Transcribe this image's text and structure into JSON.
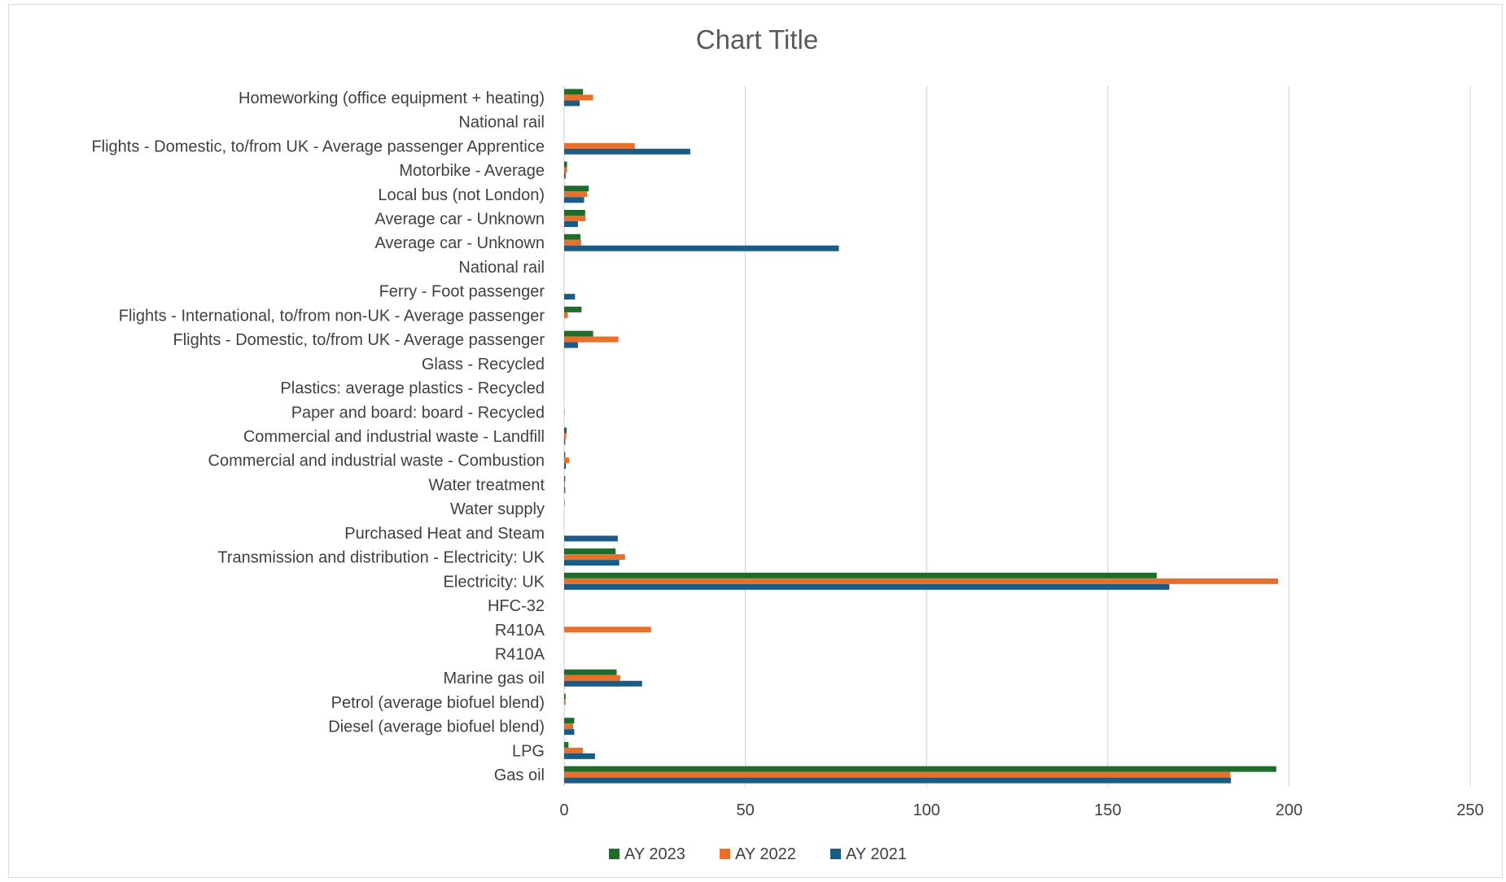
{
  "chart_data": {
    "type": "bar",
    "orientation": "horizontal",
    "title": "Chart Title",
    "xlabel": "",
    "ylabel": "",
    "xlim": [
      0,
      250
    ],
    "xticks": [
      0,
      50,
      100,
      150,
      200,
      250
    ],
    "grid": true,
    "legend_position": "bottom",
    "categories": [
      "Homeworking (office equipment + heating)",
      "National rail",
      "Flights - Domestic, to/from UK - Average passenger Apprentice",
      "Motorbike - Average",
      "Local bus (not London)",
      "Average car - Unknown",
      "Average car - Unknown",
      "National rail",
      "Ferry - Foot passenger",
      "Flights - International, to/from non-UK - Average passenger",
      "Flights - Domestic, to/from UK - Average passenger",
      "Glass - Recycled",
      "Plastics: average plastics - Recycled",
      "Paper and board: board - Recycled",
      "Commercial and industrial waste - Landfill",
      "Commercial and industrial waste - Combustion",
      "Water treatment",
      "Water supply",
      "Purchased Heat and Steam ",
      "Transmission and distribution - Electricity: UK",
      "Electricity: UK",
      "HFC-32",
      "R410A",
      "R410A",
      "Marine gas oil",
      "Petrol (average biofuel blend)",
      "Diesel (average biofuel blend)",
      "LPG",
      "Gas oil"
    ],
    "series": [
      {
        "name": "AY 2023",
        "color": "#1e6b2a",
        "values": [
          5.2,
          0,
          0,
          0.8,
          6.8,
          5.8,
          4.5,
          0,
          0,
          4.8,
          8.0,
          0,
          0,
          0,
          0.7,
          0.3,
          0.3,
          0.1,
          0,
          14.2,
          163.5,
          0,
          0,
          0,
          14.5,
          0.4,
          2.8,
          1.2,
          196.5
        ]
      },
      {
        "name": "AY 2022",
        "color": "#e8702a",
        "values": [
          8.0,
          0,
          19.5,
          0.8,
          6.3,
          5.9,
          4.7,
          0,
          0,
          1.0,
          15.0,
          0,
          0,
          0.1,
          0.6,
          1.4,
          0.2,
          0,
          0,
          16.8,
          197.0,
          0,
          24.0,
          0,
          15.5,
          0.4,
          2.5,
          5.2,
          183.8
        ]
      },
      {
        "name": "AY 2021",
        "color": "#1a5c85",
        "values": [
          4.3,
          0,
          34.8,
          0.4,
          5.5,
          3.8,
          75.8,
          0,
          3.0,
          0,
          3.8,
          0,
          0,
          0,
          0.3,
          0.5,
          0.3,
          0,
          14.8,
          15.2,
          167.0,
          0,
          0,
          0,
          21.5,
          0,
          2.8,
          8.5,
          184.0
        ]
      }
    ]
  }
}
